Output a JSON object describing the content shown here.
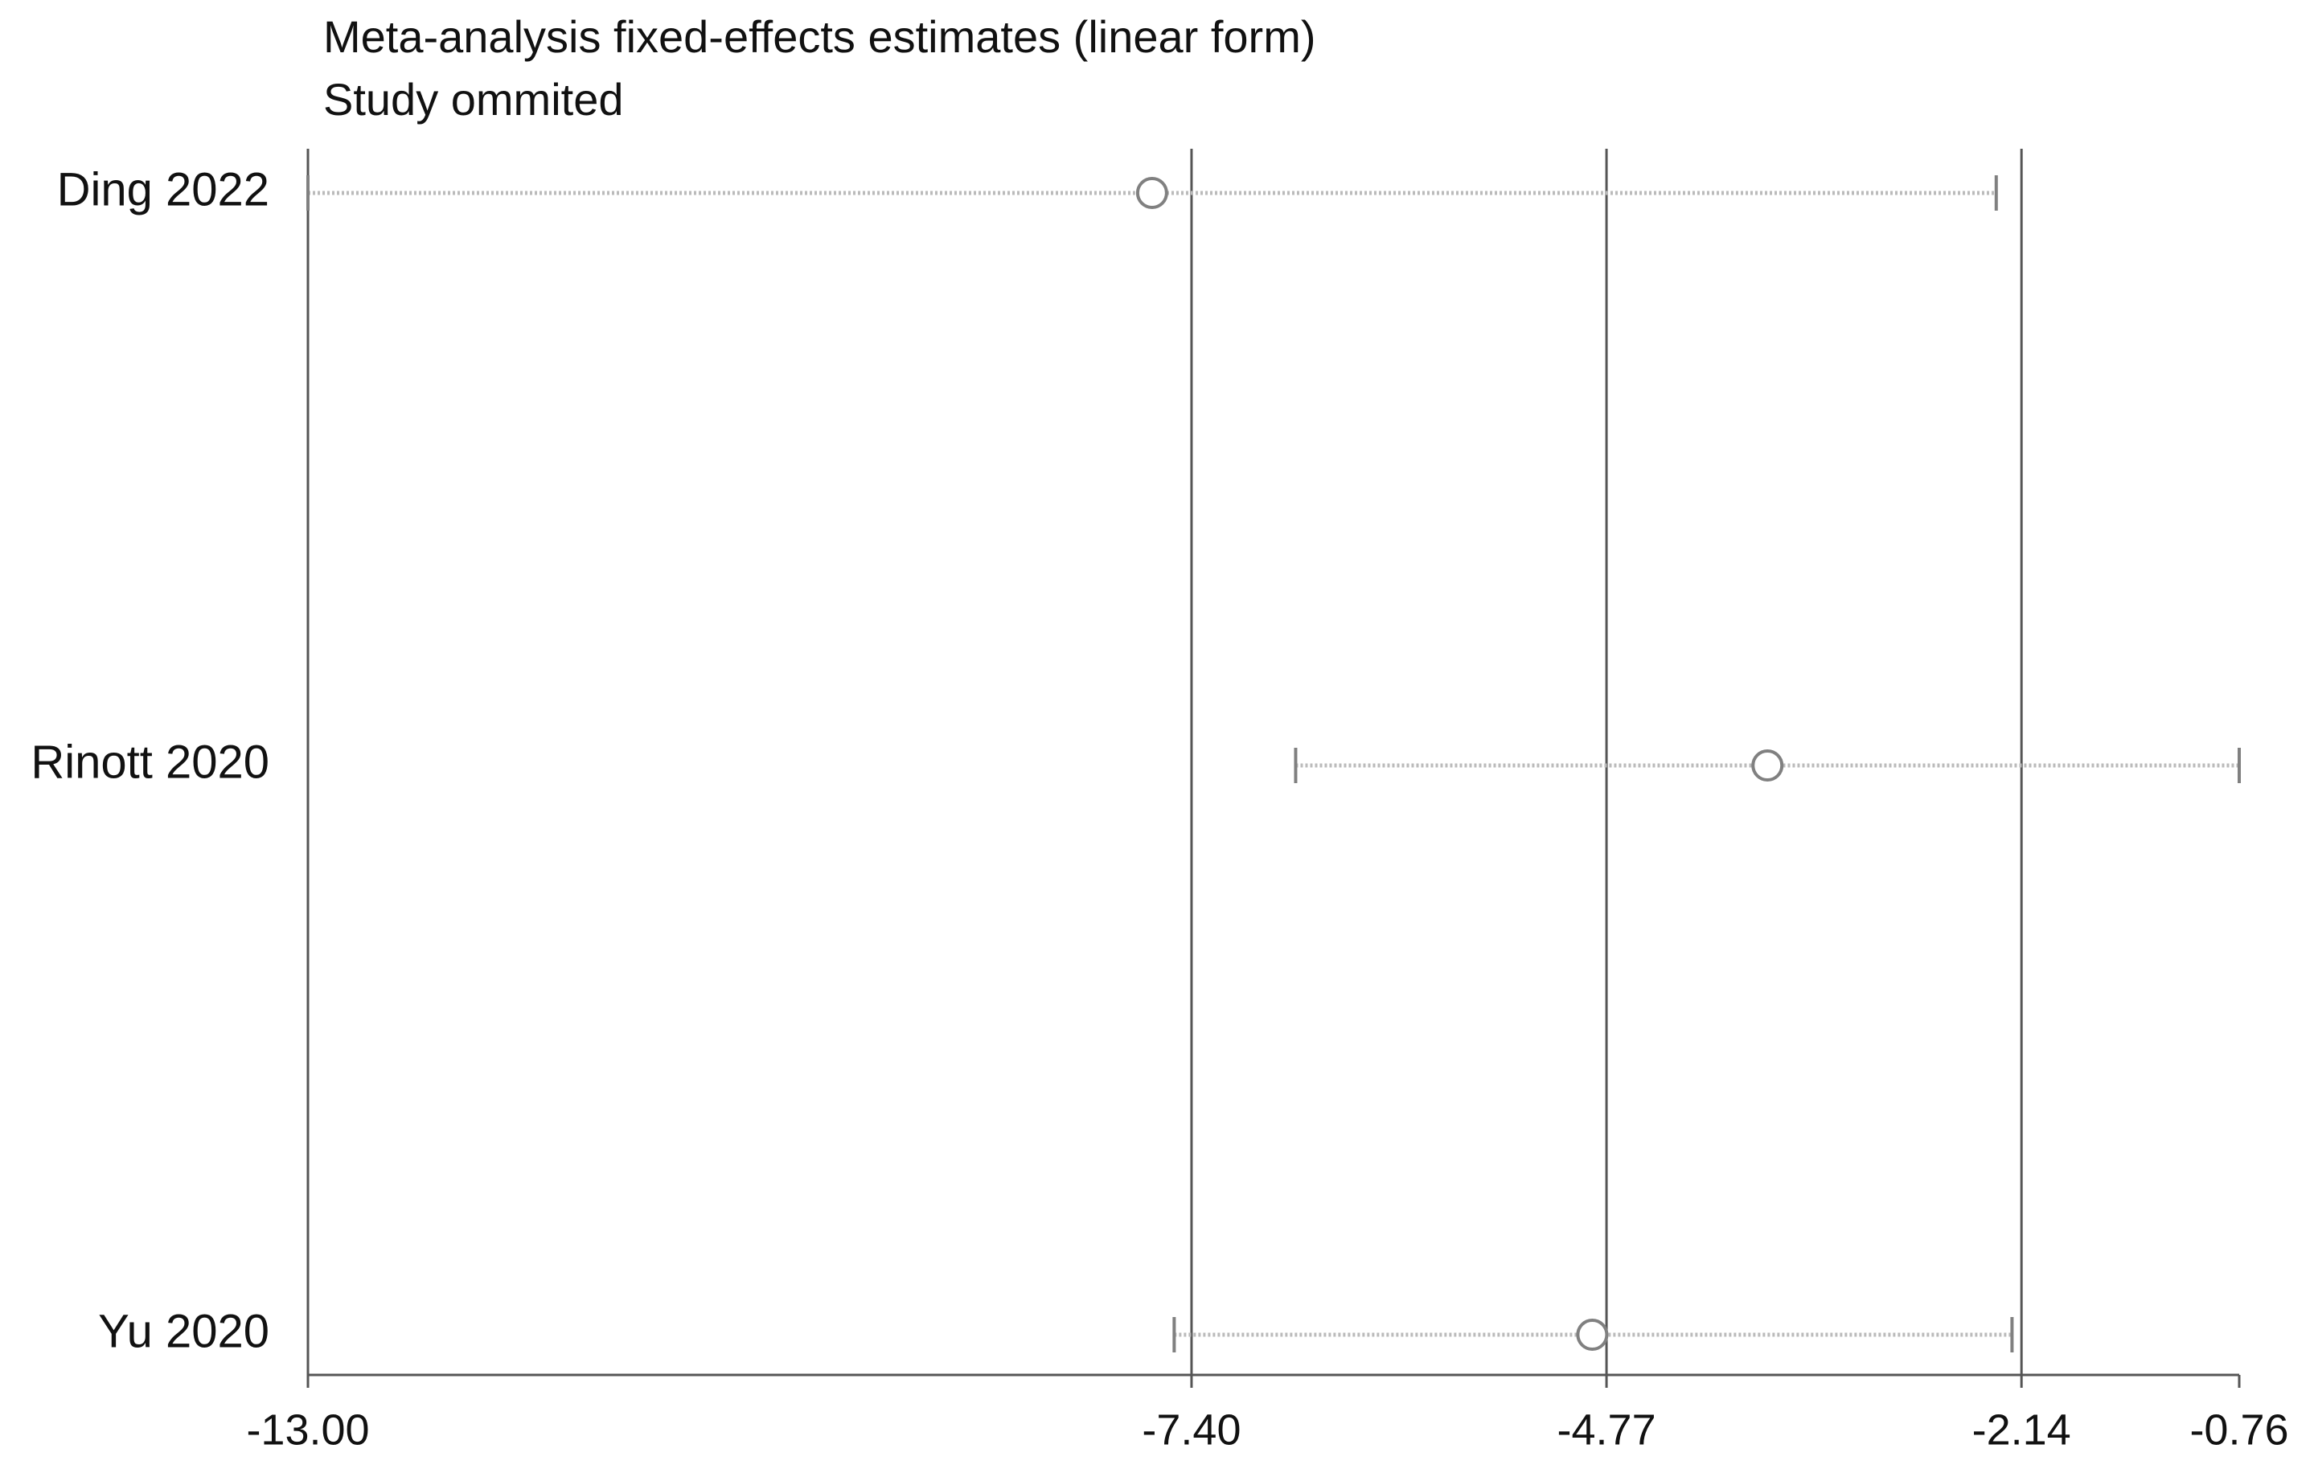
{
  "chart_data": {
    "type": "forest",
    "title": "Meta-analysis fixed-effects estimates (linear form)",
    "subtitle": "Study ommited",
    "categories": [
      "Ding 2022",
      "Rinott 2020",
      "Yu 2020"
    ],
    "values": [
      -7.65,
      -3.75,
      -4.86
    ],
    "lower": [
      -13.0,
      -6.74,
      -7.51
    ],
    "upper": [
      -2.3,
      -0.76,
      -2.2
    ],
    "color": "#808080",
    "xlim": [
      -13.0,
      -0.76
    ],
    "xticks": [
      {
        "value": -13.0,
        "label": "-13.00"
      },
      {
        "value": -7.4,
        "label": "-7.40"
      },
      {
        "value": -4.77,
        "label": "-4.77"
      },
      {
        "value": -2.14,
        "label": "-2.14"
      },
      {
        "value": -0.76,
        "label": "-0.76"
      }
    ],
    "grid": true
  }
}
